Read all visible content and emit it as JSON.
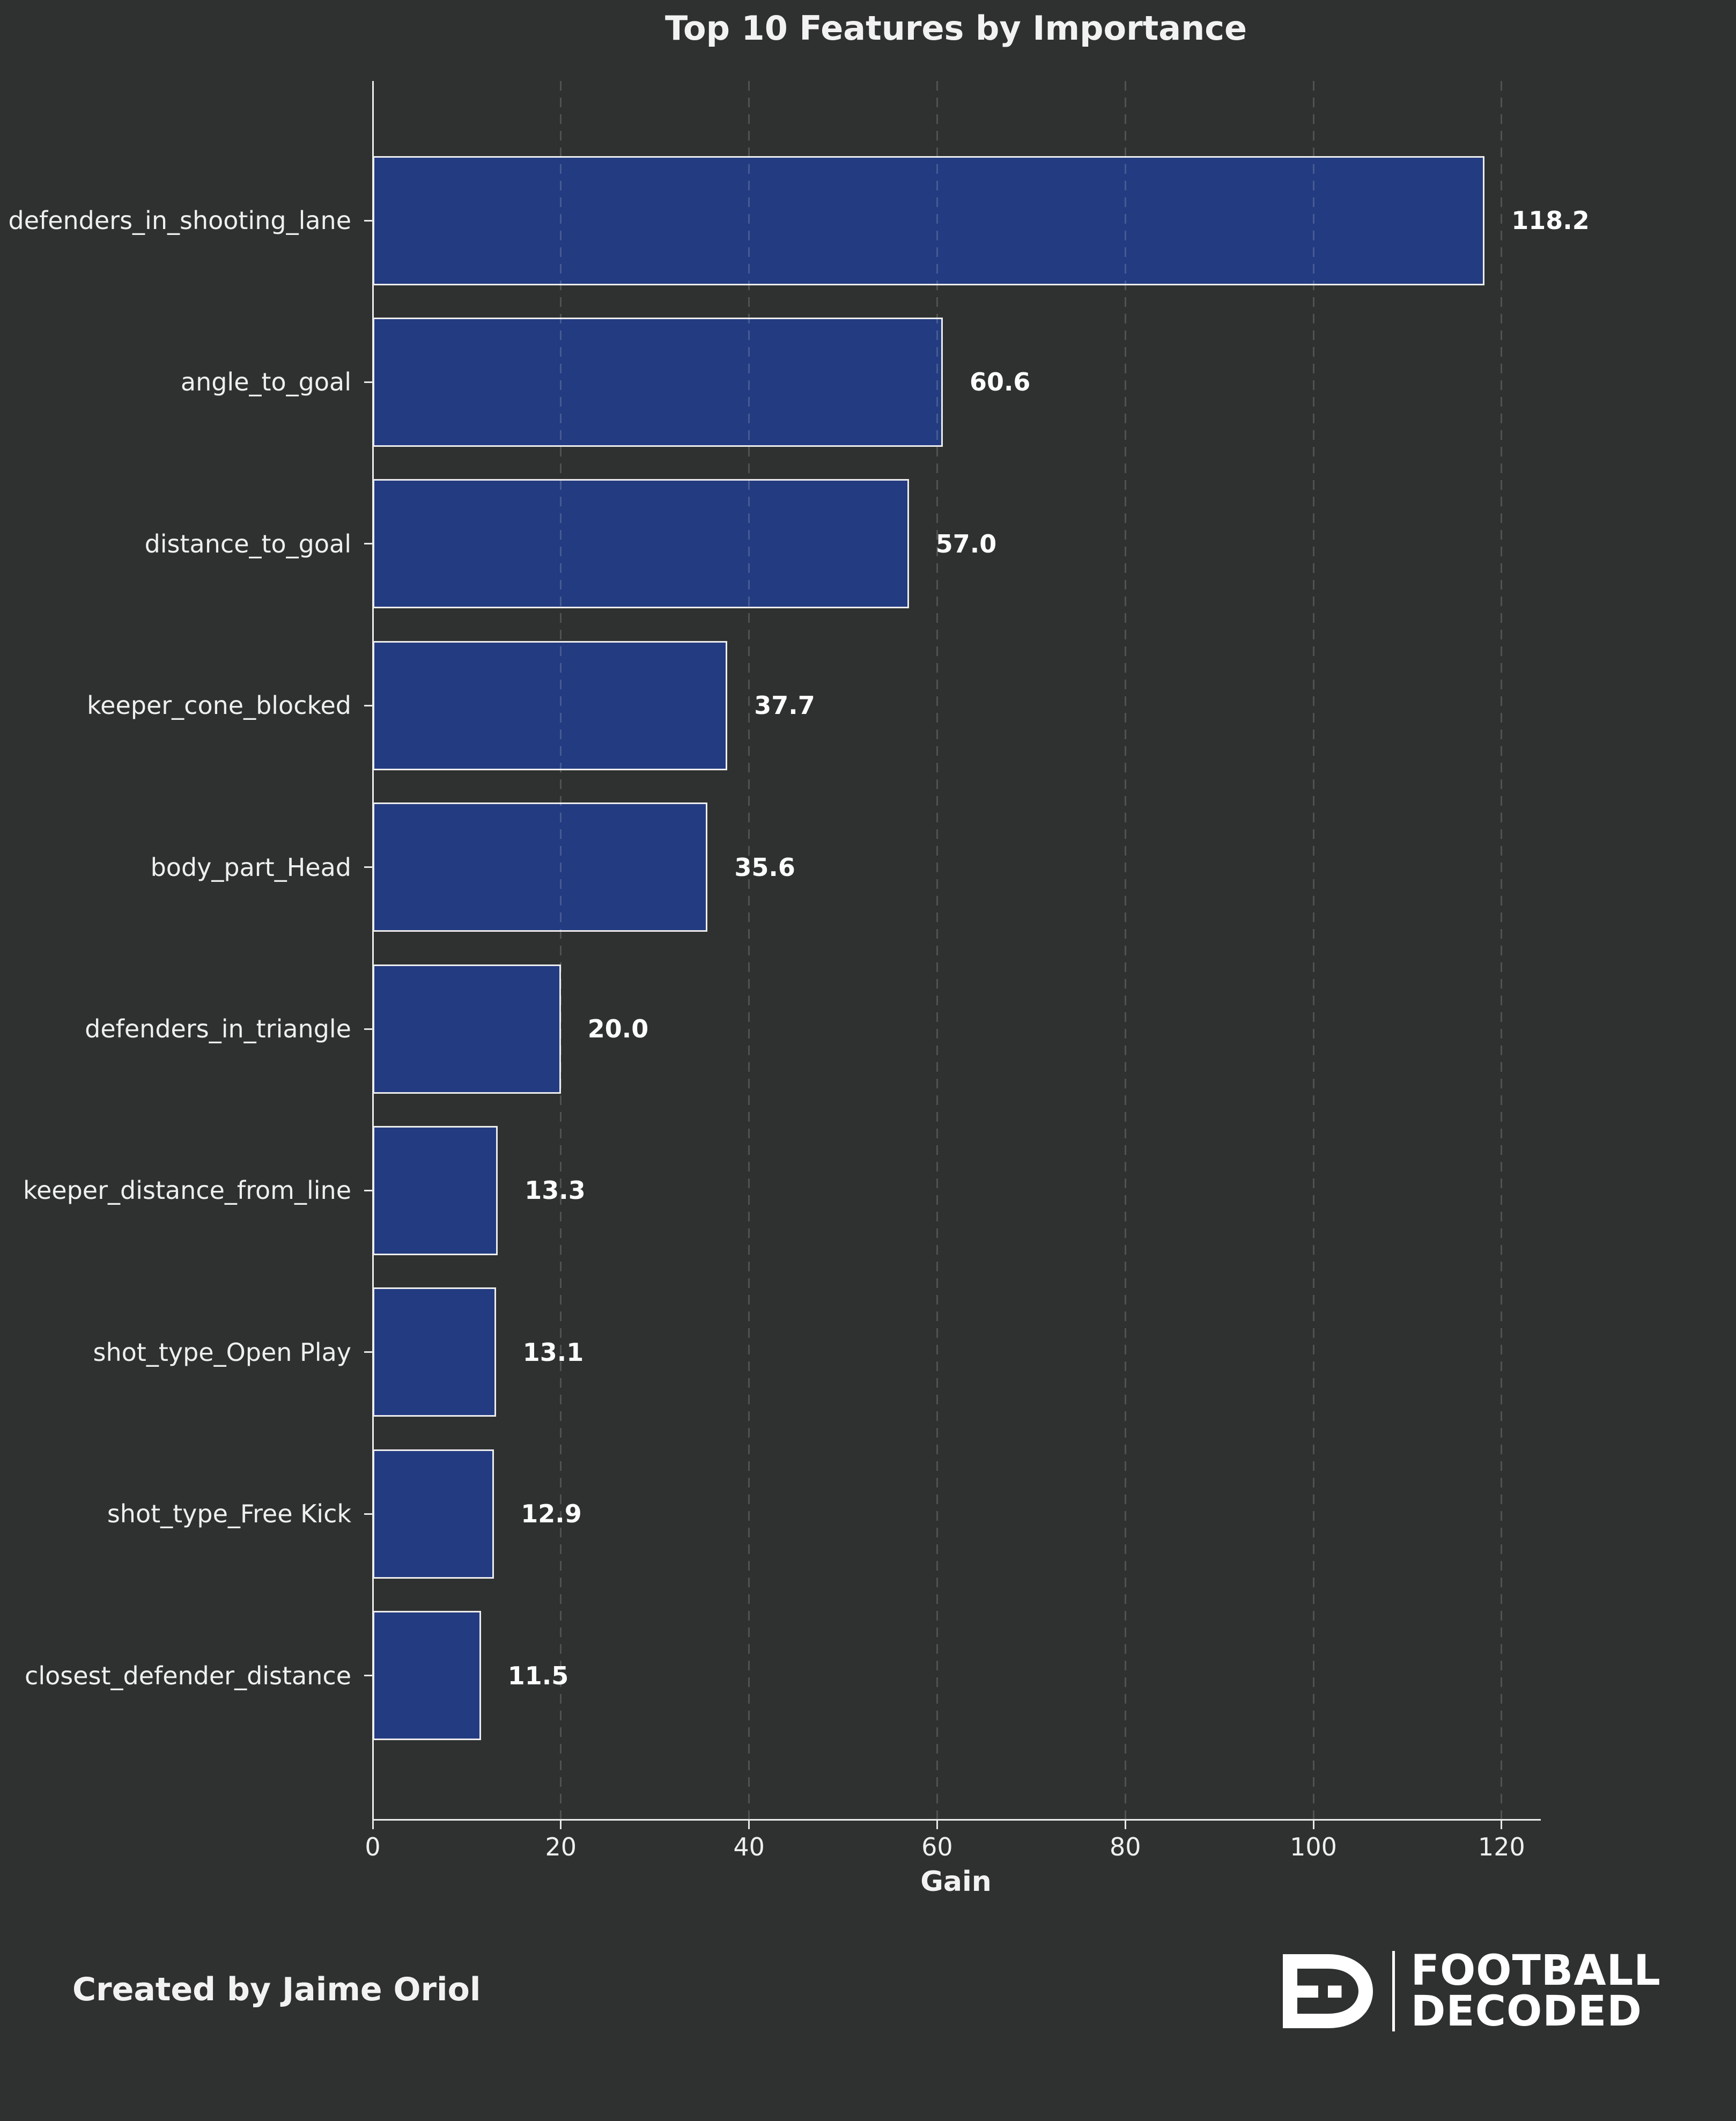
{
  "title": "Top 10 Features by Importance",
  "chart_data": {
    "type": "bar",
    "orientation": "horizontal",
    "title": "Top 10 Features by Importance",
    "categories": [
      "defenders_in_shooting_lane",
      "angle_to_goal",
      "distance_to_goal",
      "keeper_cone_blocked",
      "body_part_Head",
      "defenders_in_triangle",
      "keeper_distance_from_line",
      "shot_type_Open Play",
      "shot_type_Free Kick",
      "closest_defender_distance"
    ],
    "values": [
      118.2,
      60.6,
      57.0,
      37.7,
      35.6,
      20.0,
      13.3,
      13.1,
      12.9,
      11.5
    ],
    "value_labels": [
      "118.2",
      "60.6",
      "57.0",
      "37.7",
      "35.6",
      "20.0",
      "13.3",
      "13.1",
      "12.9",
      "11.5"
    ],
    "xlabel": "Gain",
    "ylabel": "",
    "xticks": [
      0,
      20,
      40,
      60,
      80,
      100,
      120
    ],
    "xtick_labels": [
      "0",
      "20",
      "40",
      "60",
      "80",
      "100",
      "120"
    ],
    "xlim": [
      0,
      124
    ],
    "grid": "vertical-dashed",
    "legend": "none",
    "bar_color": "#233b80",
    "bar_edge_color": "#ececec",
    "background_color": "#2f3131",
    "text_color": "#efefef"
  },
  "footer": {
    "credit": "Created by Jaime Oriol",
    "brand_monogram": "FD",
    "brand_line1": "FOOTBALL",
    "brand_line2": "DECODED"
  }
}
